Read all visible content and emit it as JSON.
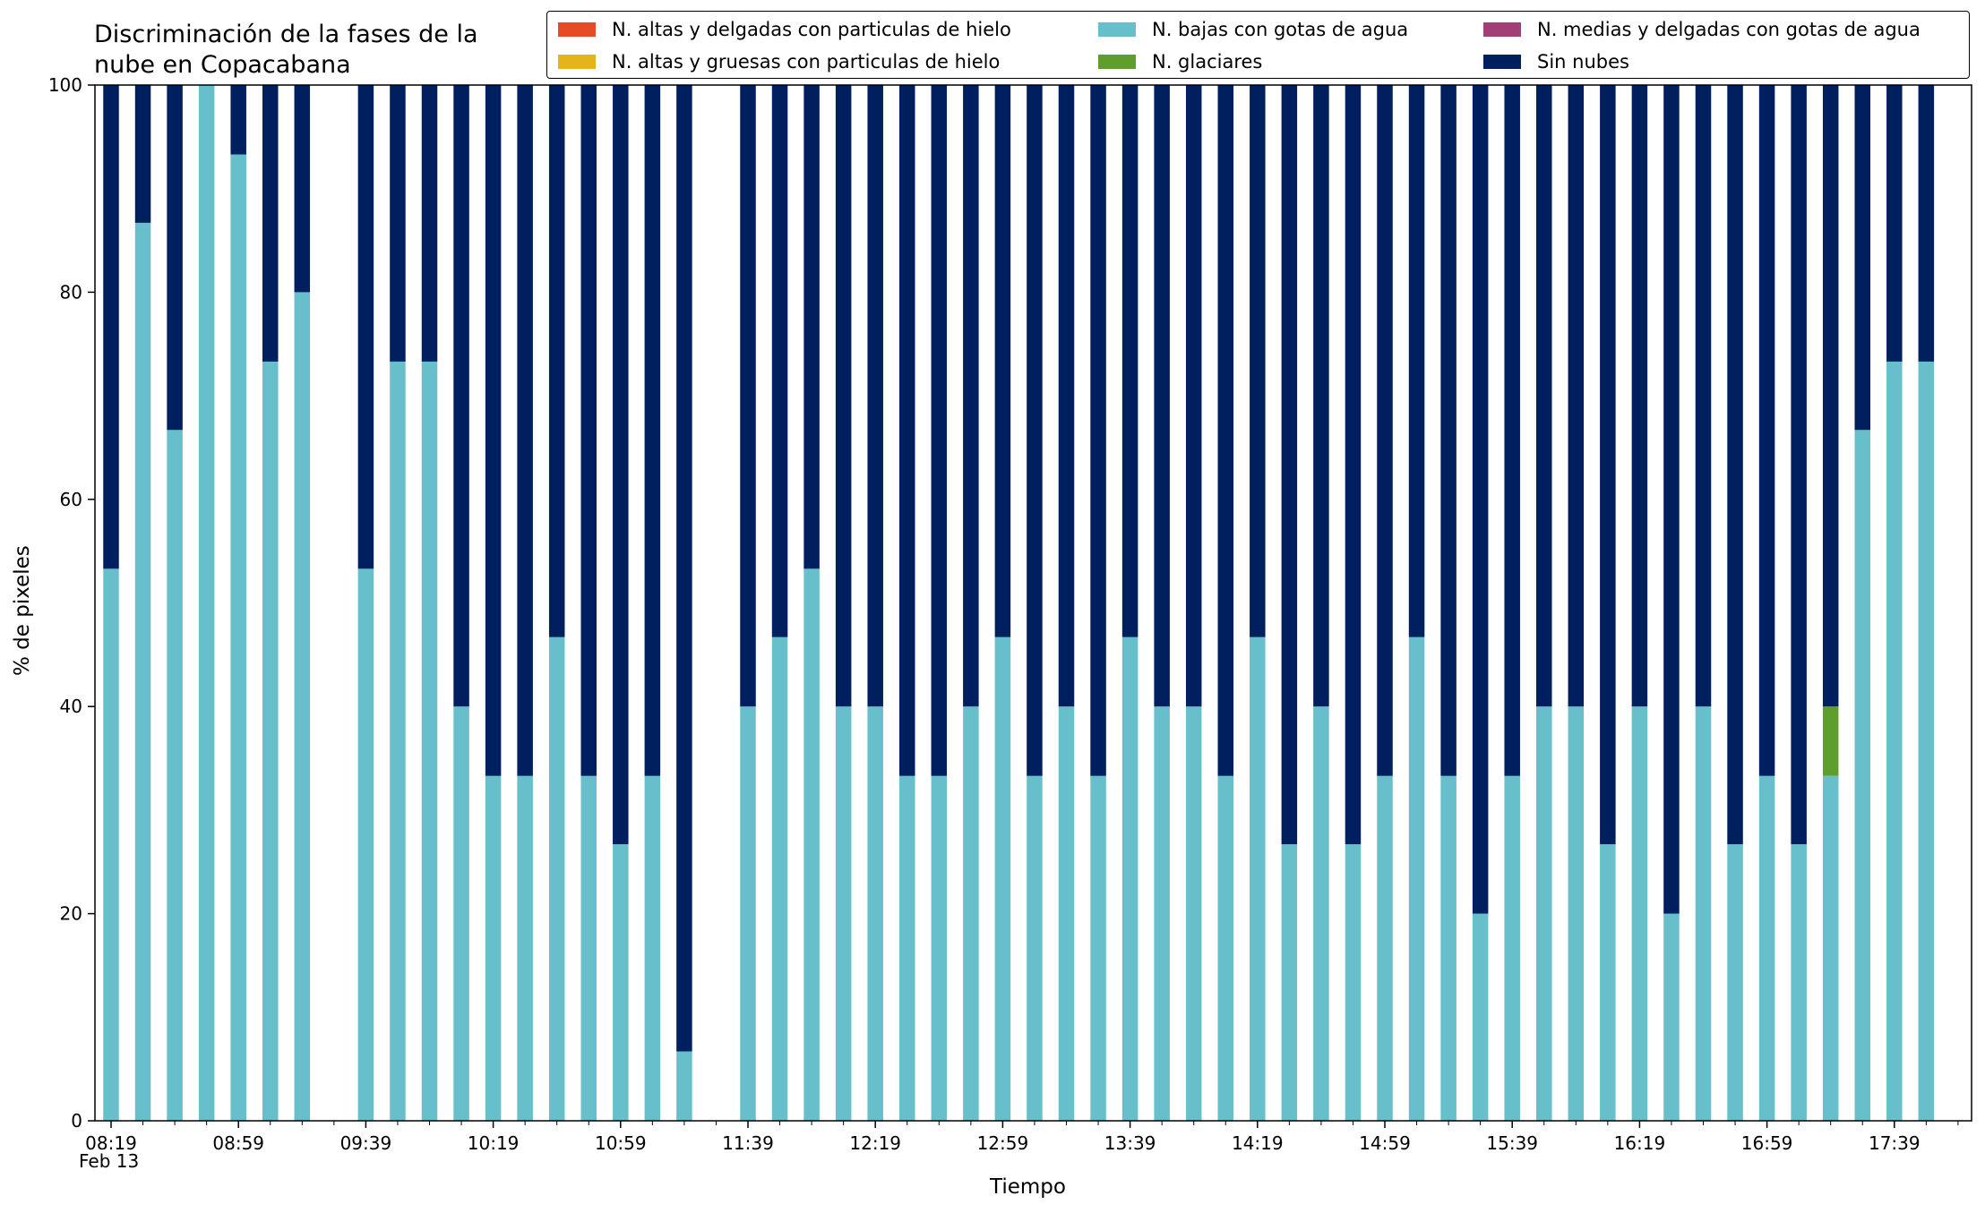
{
  "chart_data": {
    "type": "bar",
    "stacked": true,
    "title": "Discriminación de la fases de la\nnube en Copacabana",
    "xlabel": "Tiempo",
    "ylabel": "% de pixeles",
    "ylim": [
      0,
      100
    ],
    "yticks": [
      0,
      20,
      40,
      60,
      80,
      100
    ],
    "xtick_labels": [
      "08:19",
      "08:59",
      "09:39",
      "10:19",
      "10:59",
      "11:39",
      "12:19",
      "12:59",
      "13:39",
      "14:19",
      "14:59",
      "15:39",
      "16:19",
      "16:59",
      "17:39"
    ],
    "date_label": "Feb 13",
    "legend_position": "top-right",
    "categories": [
      "08:19",
      "08:29",
      "08:39",
      "08:49",
      "08:59",
      "09:09",
      "09:19",
      "09:29",
      "09:39",
      "09:49",
      "09:59",
      "10:09",
      "10:19",
      "10:29",
      "10:39",
      "10:49",
      "10:59",
      "11:09",
      "11:19",
      "11:29",
      "11:39",
      "11:49",
      "11:59",
      "12:09",
      "12:19",
      "12:29",
      "12:39",
      "12:49",
      "12:59",
      "13:09",
      "13:19",
      "13:29",
      "13:39",
      "13:49",
      "13:59",
      "14:09",
      "14:19",
      "14:29",
      "14:39",
      "14:49",
      "14:59",
      "15:09",
      "15:19",
      "15:29",
      "15:39",
      "15:49",
      "15:59",
      "16:09",
      "16:19",
      "16:29",
      "16:39",
      "16:49",
      "16:59",
      "17:09",
      "17:19",
      "17:29",
      "17:39",
      "17:49"
    ],
    "series": [
      {
        "name": "N. altas y delgadas con particulas de hielo",
        "color": "#e84a27",
        "values": [
          0,
          0,
          0,
          0,
          0,
          0,
          0,
          null,
          0,
          0,
          0,
          0,
          0,
          0,
          0,
          0,
          0,
          0,
          0,
          null,
          0,
          0,
          0,
          0,
          0,
          0,
          0,
          0,
          0,
          0,
          0,
          0,
          0,
          0,
          0,
          0,
          0,
          0,
          0,
          0,
          0,
          0,
          0,
          0,
          0,
          0,
          0,
          0,
          0,
          0,
          0,
          0,
          0,
          0,
          0,
          0,
          0,
          0
        ]
      },
      {
        "name": "N. altas y gruesas con particulas de hielo",
        "color": "#e5b41a",
        "values": [
          0,
          0,
          0,
          0,
          0,
          0,
          0,
          null,
          0,
          0,
          0,
          0,
          0,
          0,
          0,
          0,
          0,
          0,
          0,
          null,
          0,
          0,
          0,
          0,
          0,
          0,
          0,
          0,
          0,
          0,
          0,
          0,
          0,
          0,
          0,
          0,
          0,
          0,
          0,
          0,
          0,
          0,
          0,
          0,
          0,
          0,
          0,
          0,
          0,
          0,
          0,
          0,
          0,
          0,
          0,
          0,
          0,
          0
        ]
      },
      {
        "name": "N. bajas con gotas de agua",
        "color": "#66bfca",
        "values": [
          53.3,
          86.7,
          66.7,
          100,
          93.3,
          73.3,
          80,
          null,
          53.3,
          73.3,
          73.3,
          40,
          33.3,
          33.3,
          46.7,
          33.3,
          26.7,
          33.3,
          6.7,
          null,
          40,
          46.7,
          53.3,
          40,
          40,
          33.3,
          33.3,
          40,
          46.7,
          33.3,
          40,
          33.3,
          46.7,
          40,
          40,
          33.3,
          46.7,
          26.7,
          40,
          26.7,
          33.3,
          46.7,
          33.3,
          20,
          33.3,
          40,
          40,
          26.7,
          40,
          20,
          40,
          26.7,
          33.3,
          26.7,
          33.3,
          66.7,
          73.3,
          73.3
        ]
      },
      {
        "name": "N. glaciares",
        "color": "#5e9e2c",
        "values": [
          0,
          0,
          0,
          0,
          0,
          0,
          0,
          null,
          0,
          0,
          0,
          0,
          0,
          0,
          0,
          0,
          0,
          0,
          0,
          null,
          0,
          0,
          0,
          0,
          0,
          0,
          0,
          0,
          0,
          0,
          0,
          0,
          0,
          0,
          0,
          0,
          0,
          0,
          0,
          0,
          0,
          0,
          0,
          0,
          0,
          0,
          0,
          0,
          0,
          0,
          0,
          0,
          0,
          0,
          6.7,
          0,
          0,
          0
        ]
      },
      {
        "name": "N. medias y delgadas con gotas de agua",
        "color": "#a23f76",
        "values": [
          0,
          0,
          0,
          0,
          0,
          0,
          0,
          null,
          0,
          0,
          0,
          0,
          0,
          0,
          0,
          0,
          0,
          0,
          0,
          null,
          0,
          0,
          0,
          0,
          0,
          0,
          0,
          0,
          0,
          0,
          0,
          0,
          0,
          0,
          0,
          0,
          0,
          0,
          0,
          0,
          0,
          0,
          0,
          0,
          0,
          0,
          0,
          0,
          0,
          0,
          0,
          0,
          0,
          0,
          0,
          0,
          0,
          0
        ]
      },
      {
        "name": "Sin nubes",
        "color": "#001f5f",
        "values": [
          46.7,
          13.3,
          33.3,
          0,
          6.7,
          26.7,
          20,
          null,
          46.7,
          26.7,
          26.7,
          60,
          66.7,
          66.7,
          53.3,
          66.7,
          73.3,
          66.7,
          93.3,
          null,
          60,
          53.3,
          46.7,
          60,
          60,
          66.7,
          66.7,
          60,
          53.3,
          66.7,
          60,
          66.7,
          53.3,
          60,
          60,
          66.7,
          53.3,
          73.3,
          60,
          73.3,
          66.7,
          53.3,
          66.7,
          80,
          66.7,
          60,
          60,
          73.3,
          60,
          80,
          60,
          73.3,
          66.7,
          73.3,
          60,
          33.3,
          26.7,
          26.7
        ]
      }
    ]
  }
}
